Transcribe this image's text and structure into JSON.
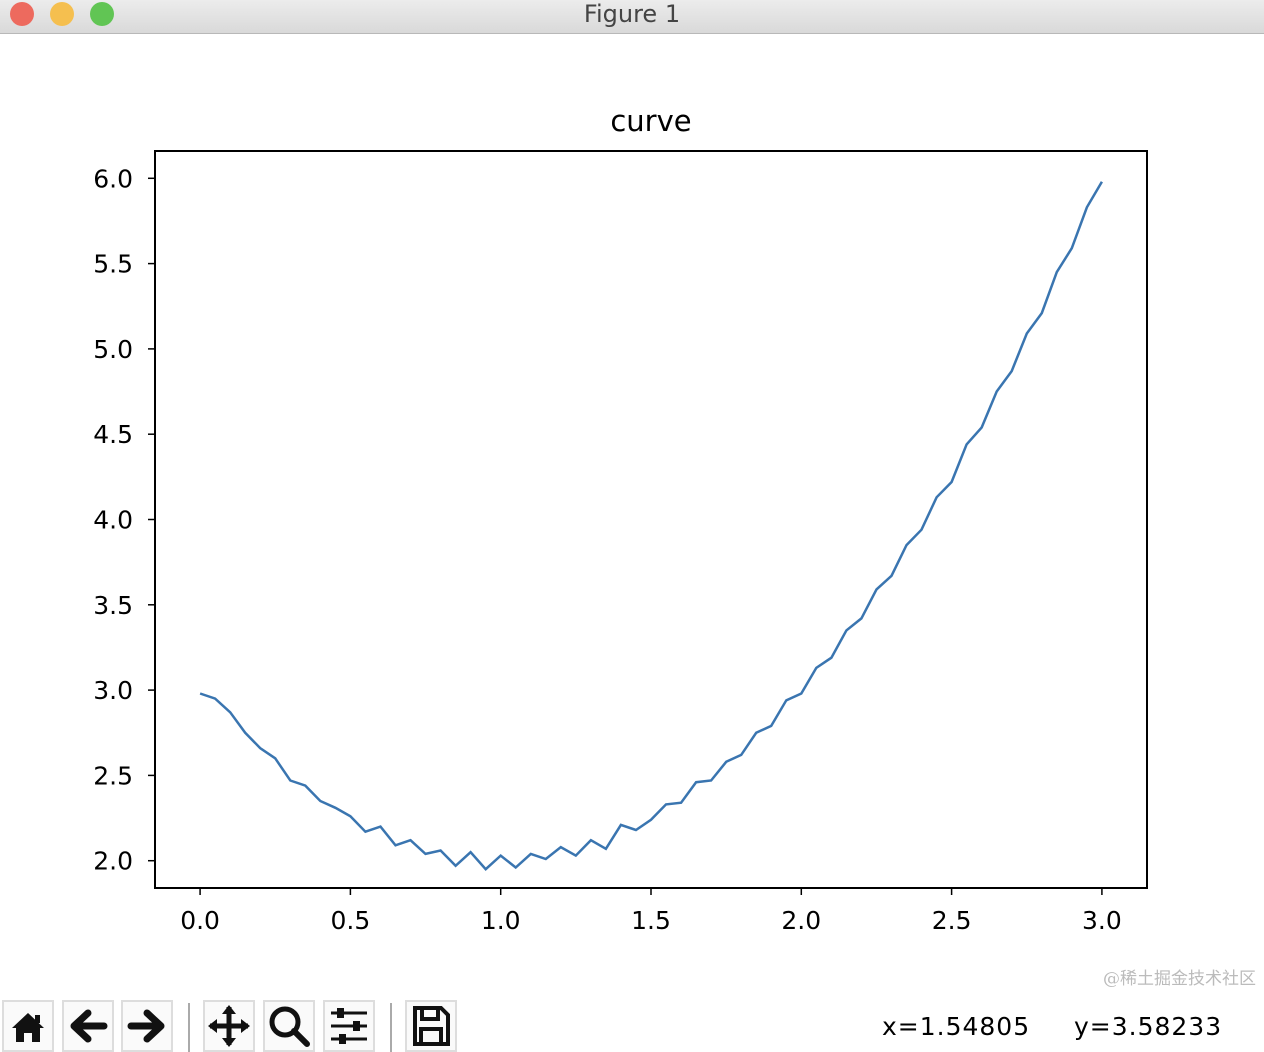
{
  "window": {
    "title": "Figure 1",
    "traffic_lights": {
      "close": "#ed6a5e",
      "minimize": "#f5bf4f",
      "zoom": "#61c554"
    }
  },
  "chart_data": {
    "type": "line",
    "title": "curve",
    "xlabel": "",
    "ylabel": "",
    "xlim": [
      -0.15,
      3.15
    ],
    "ylim": [
      1.84,
      6.16
    ],
    "xticks": [
      "0.0",
      "0.5",
      "1.0",
      "1.5",
      "2.0",
      "2.5",
      "3.0"
    ],
    "yticks": [
      "2.0",
      "2.5",
      "3.0",
      "3.5",
      "4.0",
      "4.5",
      "5.0",
      "5.5",
      "6.0"
    ],
    "grid": false,
    "color": "#3a75b0",
    "x": [
      0,
      0.05,
      0.1,
      0.15,
      0.2,
      0.25,
      0.3,
      0.35,
      0.4,
      0.45,
      0.5,
      0.55,
      0.6,
      0.65,
      0.7,
      0.75,
      0.8,
      0.85,
      0.9,
      0.95,
      1.0,
      1.05,
      1.1,
      1.15,
      1.2,
      1.25,
      1.3,
      1.35,
      1.4,
      1.45,
      1.5,
      1.55,
      1.6,
      1.65,
      1.7,
      1.75,
      1.8,
      1.85,
      1.9,
      1.95,
      2.0,
      2.05,
      2.1,
      2.15,
      2.2,
      2.25,
      2.3,
      2.35,
      2.4,
      2.45,
      2.5,
      2.55,
      2.6,
      2.65,
      2.7,
      2.75,
      2.8,
      2.85,
      2.9,
      2.95,
      3.0
    ],
    "y": [
      2.98,
      2.95,
      2.87,
      2.75,
      2.66,
      2.6,
      2.47,
      2.44,
      2.35,
      2.31,
      2.26,
      2.17,
      2.2,
      2.09,
      2.12,
      2.04,
      2.06,
      1.97,
      2.05,
      1.95,
      2.03,
      1.96,
      2.04,
      2.01,
      2.08,
      2.03,
      2.12,
      2.07,
      2.21,
      2.18,
      2.24,
      2.33,
      2.34,
      2.46,
      2.47,
      2.58,
      2.62,
      2.75,
      2.79,
      2.94,
      2.98,
      3.13,
      3.19,
      3.35,
      3.42,
      3.59,
      3.67,
      3.85,
      3.94,
      4.13,
      4.22,
      4.44,
      4.54,
      4.75,
      4.87,
      5.09,
      5.21,
      5.45,
      5.59,
      5.83,
      5.98
    ]
  },
  "toolbar": {
    "buttons": [
      "home",
      "back",
      "forward",
      "pan",
      "zoom",
      "configure-subplots",
      "save"
    ]
  },
  "status": {
    "x_readout": "x=1.54805",
    "y_readout": "y=3.58233"
  },
  "watermark": "@稀土掘金技术社区"
}
